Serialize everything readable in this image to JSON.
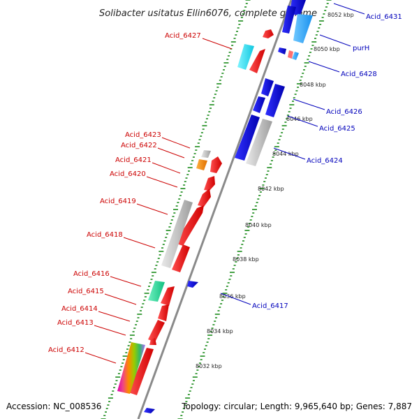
{
  "title": "Solibacter usitatus Ellin6076, complete genome",
  "footer": {
    "accession": "Accession: NC_008536",
    "topology": "Topology: circular; Length: 9,965,640 bp; Genes: 7,887"
  },
  "colors": {
    "backbone": "#8c8c8c",
    "reverse_strand": "#ff0000",
    "forward_strand": "#0000ff",
    "ticks": "#1a8a1a",
    "grey_gene": "#c0c0c0",
    "cyan_gene": "#33ddee",
    "light_blue_gene": "#33aaff",
    "orange_gene": "#ff8800",
    "mint_gene": "#33dd99"
  },
  "kbp_labels": [
    "8032 kbp",
    "8034 kbp",
    "8036 kbp",
    "8038 kbp",
    "8040 kbp",
    "8042 kbp",
    "8044 kbp",
    "8046 kbp",
    "8048 kbp",
    "8050 kbp",
    "8052 kbp"
  ],
  "left_labels": [
    "Acid_6427",
    "Acid_6423",
    "Acid_6422",
    "Acid_6421",
    "Acid_6420",
    "Acid_6419",
    "Acid_6418",
    "Acid_6416",
    "Acid_6415",
    "Acid_6414",
    "Acid_6413",
    "Acid_6412"
  ],
  "right_labels": [
    "Acid_6431",
    "purH",
    "Acid_6428",
    "Acid_6426",
    "Acid_6425",
    "Acid_6424",
    "Acid_6417"
  ]
}
